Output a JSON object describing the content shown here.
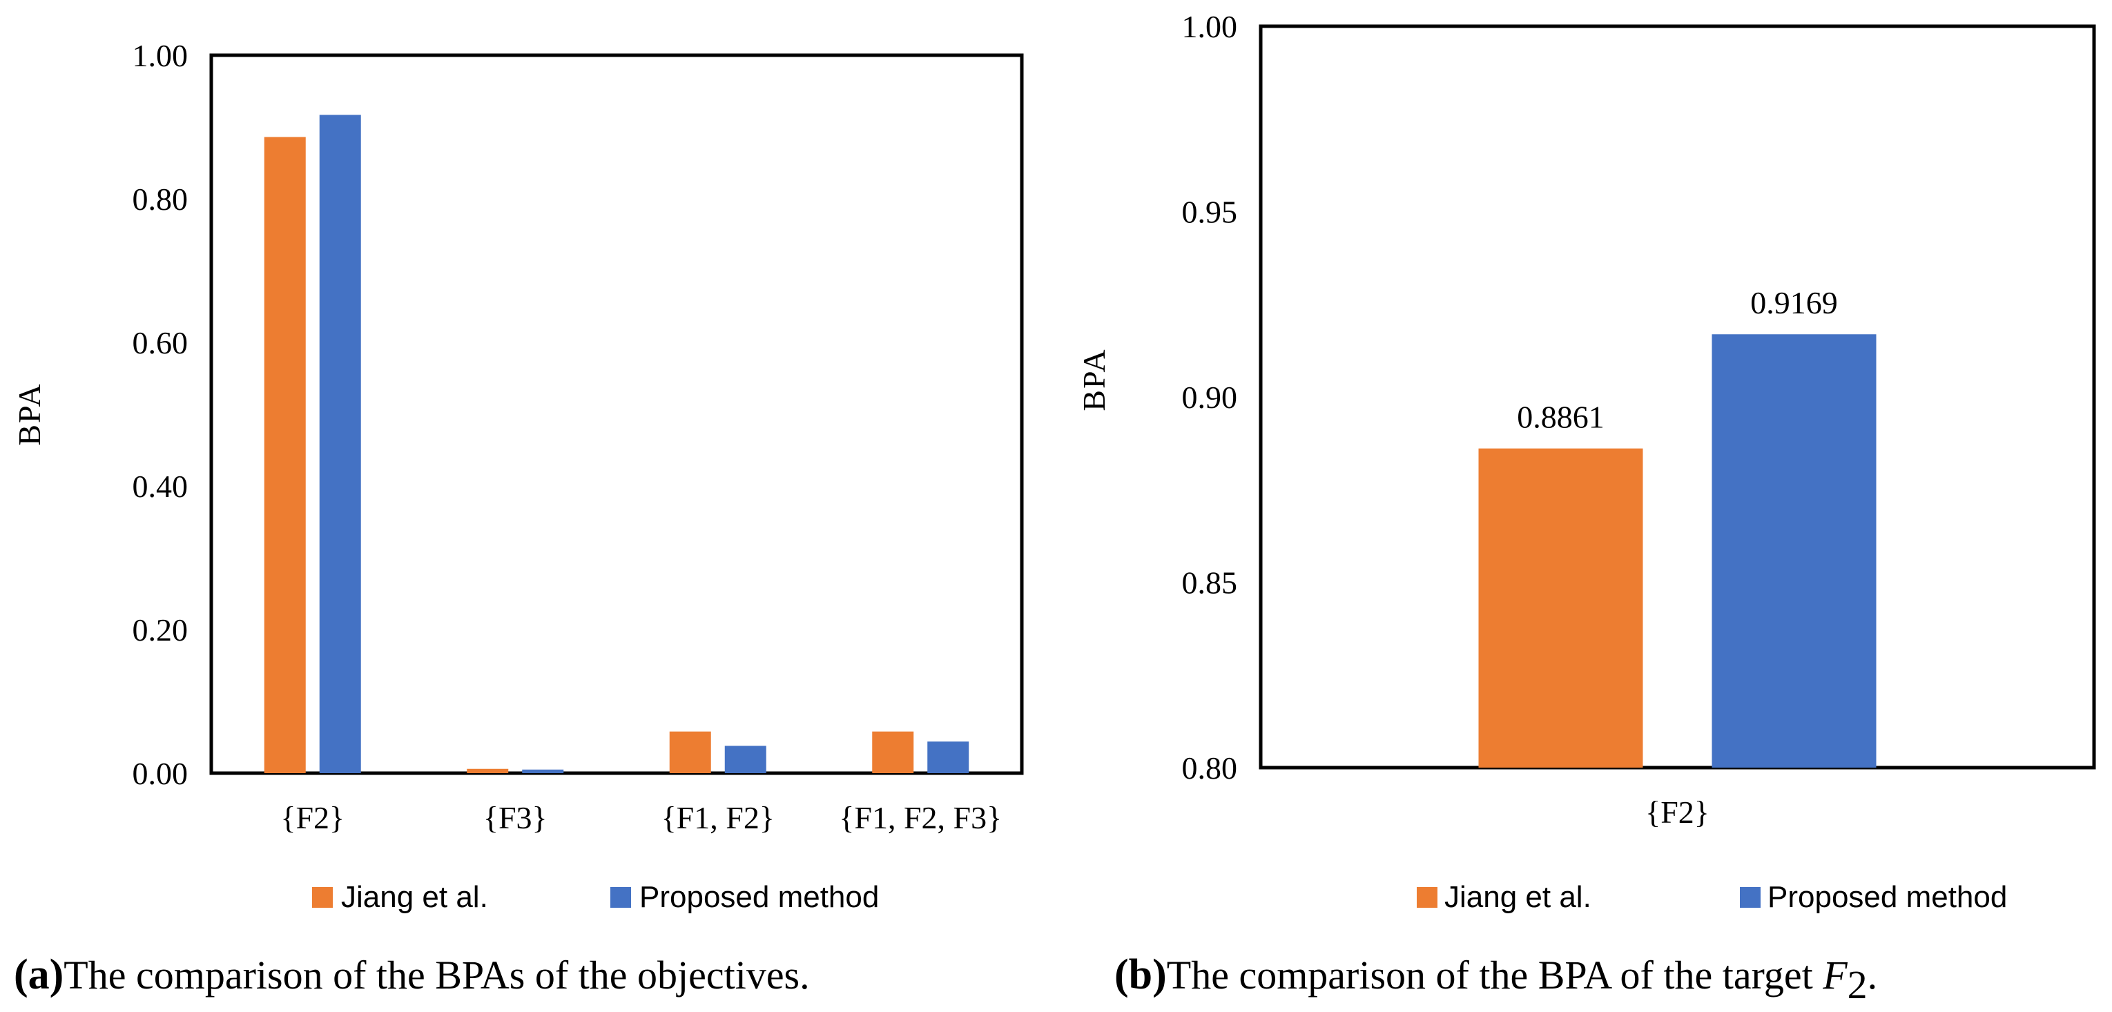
{
  "colors": {
    "series1": "#ED7D31",
    "series2": "#4472C4"
  },
  "chart_data": [
    {
      "type": "bar",
      "panel_label": "(a)",
      "caption": "The comparison of the BPAs of the objectives.",
      "title": "",
      "xlabel": "",
      "ylabel": "BPA",
      "ylim": [
        0,
        1
      ],
      "yticks": [
        "0.00",
        "0.20",
        "0.40",
        "0.60",
        "0.80",
        "1.00"
      ],
      "grid": false,
      "legend_position": "bottom",
      "categories": [
        "{F2}",
        "{F3}",
        "{F1, F2}",
        "{F1, F2, F3}"
      ],
      "series": [
        {
          "name": "Jiang et al.",
          "values": [
            0.8861,
            0.006,
            0.058,
            0.058
          ]
        },
        {
          "name": "Proposed method",
          "values": [
            0.9169,
            0.005,
            0.038,
            0.044
          ]
        }
      ]
    },
    {
      "type": "bar",
      "panel_label": "(b)",
      "caption_prefix": "The comparison of the BPA of the target ",
      "caption_var": "F",
      "caption_sub": "2",
      "caption_suffix": ".",
      "title": "",
      "xlabel": "",
      "ylabel": "BPA",
      "ylim": [
        0.8,
        1.0
      ],
      "yticks": [
        "0.80",
        "0.85",
        "0.90",
        "0.95",
        "1.00"
      ],
      "grid": false,
      "legend_position": "bottom",
      "categories": [
        "{F2}"
      ],
      "series": [
        {
          "name": "Jiang et al.",
          "values": [
            0.8861
          ],
          "labels": [
            "0.8861"
          ]
        },
        {
          "name": "Proposed method",
          "values": [
            0.9169
          ],
          "labels": [
            "0.9169"
          ]
        }
      ]
    }
  ]
}
